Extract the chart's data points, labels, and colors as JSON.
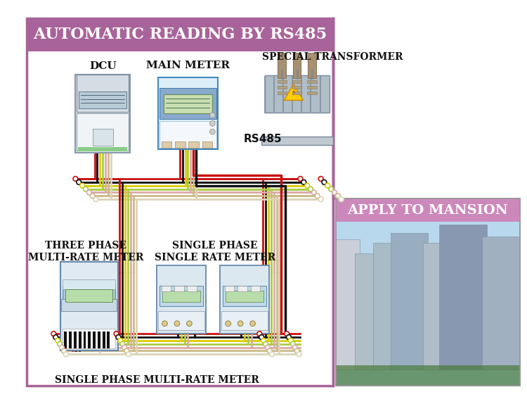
{
  "title": "AUTOMATIC READING BY RS485",
  "title_bg": "#a8649a",
  "title_color": "#ffffff",
  "apply_label": "APPLY TO MANSION",
  "apply_bg": "#cc88bb",
  "apply_color": "#ffffff",
  "border_color": "#a8649a",
  "bg_color": "#ffffff",
  "labels": {
    "dcu": "DCU",
    "main_meter": "MAIN METER",
    "special_transformer": "SPECIAL TRANSFORMER",
    "three_phase": "THREE PHASE\nMULTI-RATE METER",
    "single_phase_single": "SINGLE PHASE\nSINGLE RATE METER",
    "single_phase_multi": "SINGLE PHASE MULTI-RATE METER",
    "rs485": "RS485"
  },
  "wire_colors": [
    "#cc0000",
    "#111111",
    "#e8cc00",
    "#aacc88",
    "#ddaaaa",
    "#ccccaa",
    "#ddddcc"
  ],
  "fig_w": 7.5,
  "fig_h": 5.74,
  "dpi": 100
}
